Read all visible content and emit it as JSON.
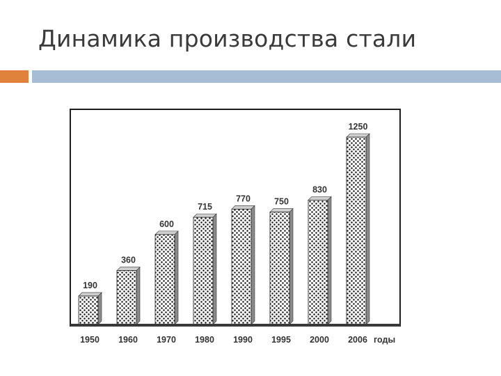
{
  "slide": {
    "title": "Динамика производства стали"
  },
  "colors": {
    "accent_square": "#e0823c",
    "accent_bar": "#a7bdd6",
    "frame": "#1e1e1e",
    "baseline": "#3a3a3a",
    "bar_face": "#ffffff",
    "bar_dots": "#1a1a1a",
    "bar_side": "#8a8a8a",
    "bar_top": "#cfcfcf"
  },
  "chart_data": {
    "type": "bar",
    "title": "",
    "xlabel": "годы",
    "ylabel": "",
    "categories": [
      "1950",
      "1960",
      "1970",
      "1980",
      "1990",
      "1995",
      "2000",
      "2006"
    ],
    "values": [
      190,
      360,
      600,
      715,
      770,
      750,
      830,
      1250
    ],
    "data_labels": [
      "190",
      "360",
      "600",
      "715",
      "770",
      "750",
      "830",
      "1250"
    ],
    "ylim": [
      0,
      1250
    ],
    "grid": false,
    "legend": "none",
    "style": "3d-dotted"
  }
}
